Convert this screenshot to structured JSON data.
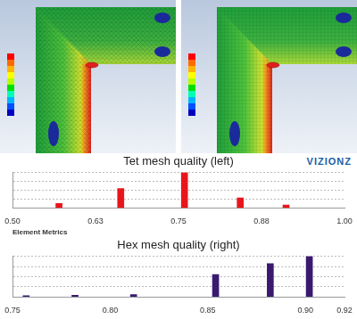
{
  "logo": "VIZIONZ",
  "chart_data": [
    {
      "type": "bar",
      "title": "Tet mesh quality (left)",
      "x_label": "Element Metrics",
      "x": [
        0.57,
        0.663,
        0.759,
        0.843,
        0.912
      ],
      "values": [
        13,
        55,
        100,
        29,
        9
      ],
      "color": "#e8161c",
      "xlim": [
        0.5,
        1.0
      ],
      "xticks": [
        {
          "value": 0.5,
          "label": "0.50"
        },
        {
          "value": 0.625,
          "label": "0.63"
        },
        {
          "value": 0.75,
          "label": "0.75"
        },
        {
          "value": 0.875,
          "label": "0.88"
        },
        {
          "value": 1.0,
          "label": "1.00"
        }
      ],
      "ylim": [
        0,
        100
      ],
      "yticks": [
        0,
        25,
        50,
        75,
        100
      ],
      "grid": true,
      "tick_labels": "x"
    },
    {
      "type": "bar",
      "title": "Hex mesh quality (right)",
      "x": [
        0.757,
        0.782,
        0.812,
        0.854,
        0.882,
        0.902
      ],
      "values": [
        3,
        4,
        6,
        55,
        82,
        100
      ],
      "color": "#3a1a6e",
      "xlim": [
        0.75,
        0.92
      ],
      "xticks": [
        {
          "value": 0.75,
          "label": "0.75"
        },
        {
          "value": 0.8,
          "label": "0.80"
        },
        {
          "value": 0.85,
          "label": "0.85"
        },
        {
          "value": 0.9,
          "label": "0.90"
        },
        0.92
      ],
      "ylim": [
        0,
        100
      ],
      "yticks": [
        0,
        25,
        50,
        75,
        100
      ],
      "grid": true,
      "tick_labels": "x"
    }
  ]
}
